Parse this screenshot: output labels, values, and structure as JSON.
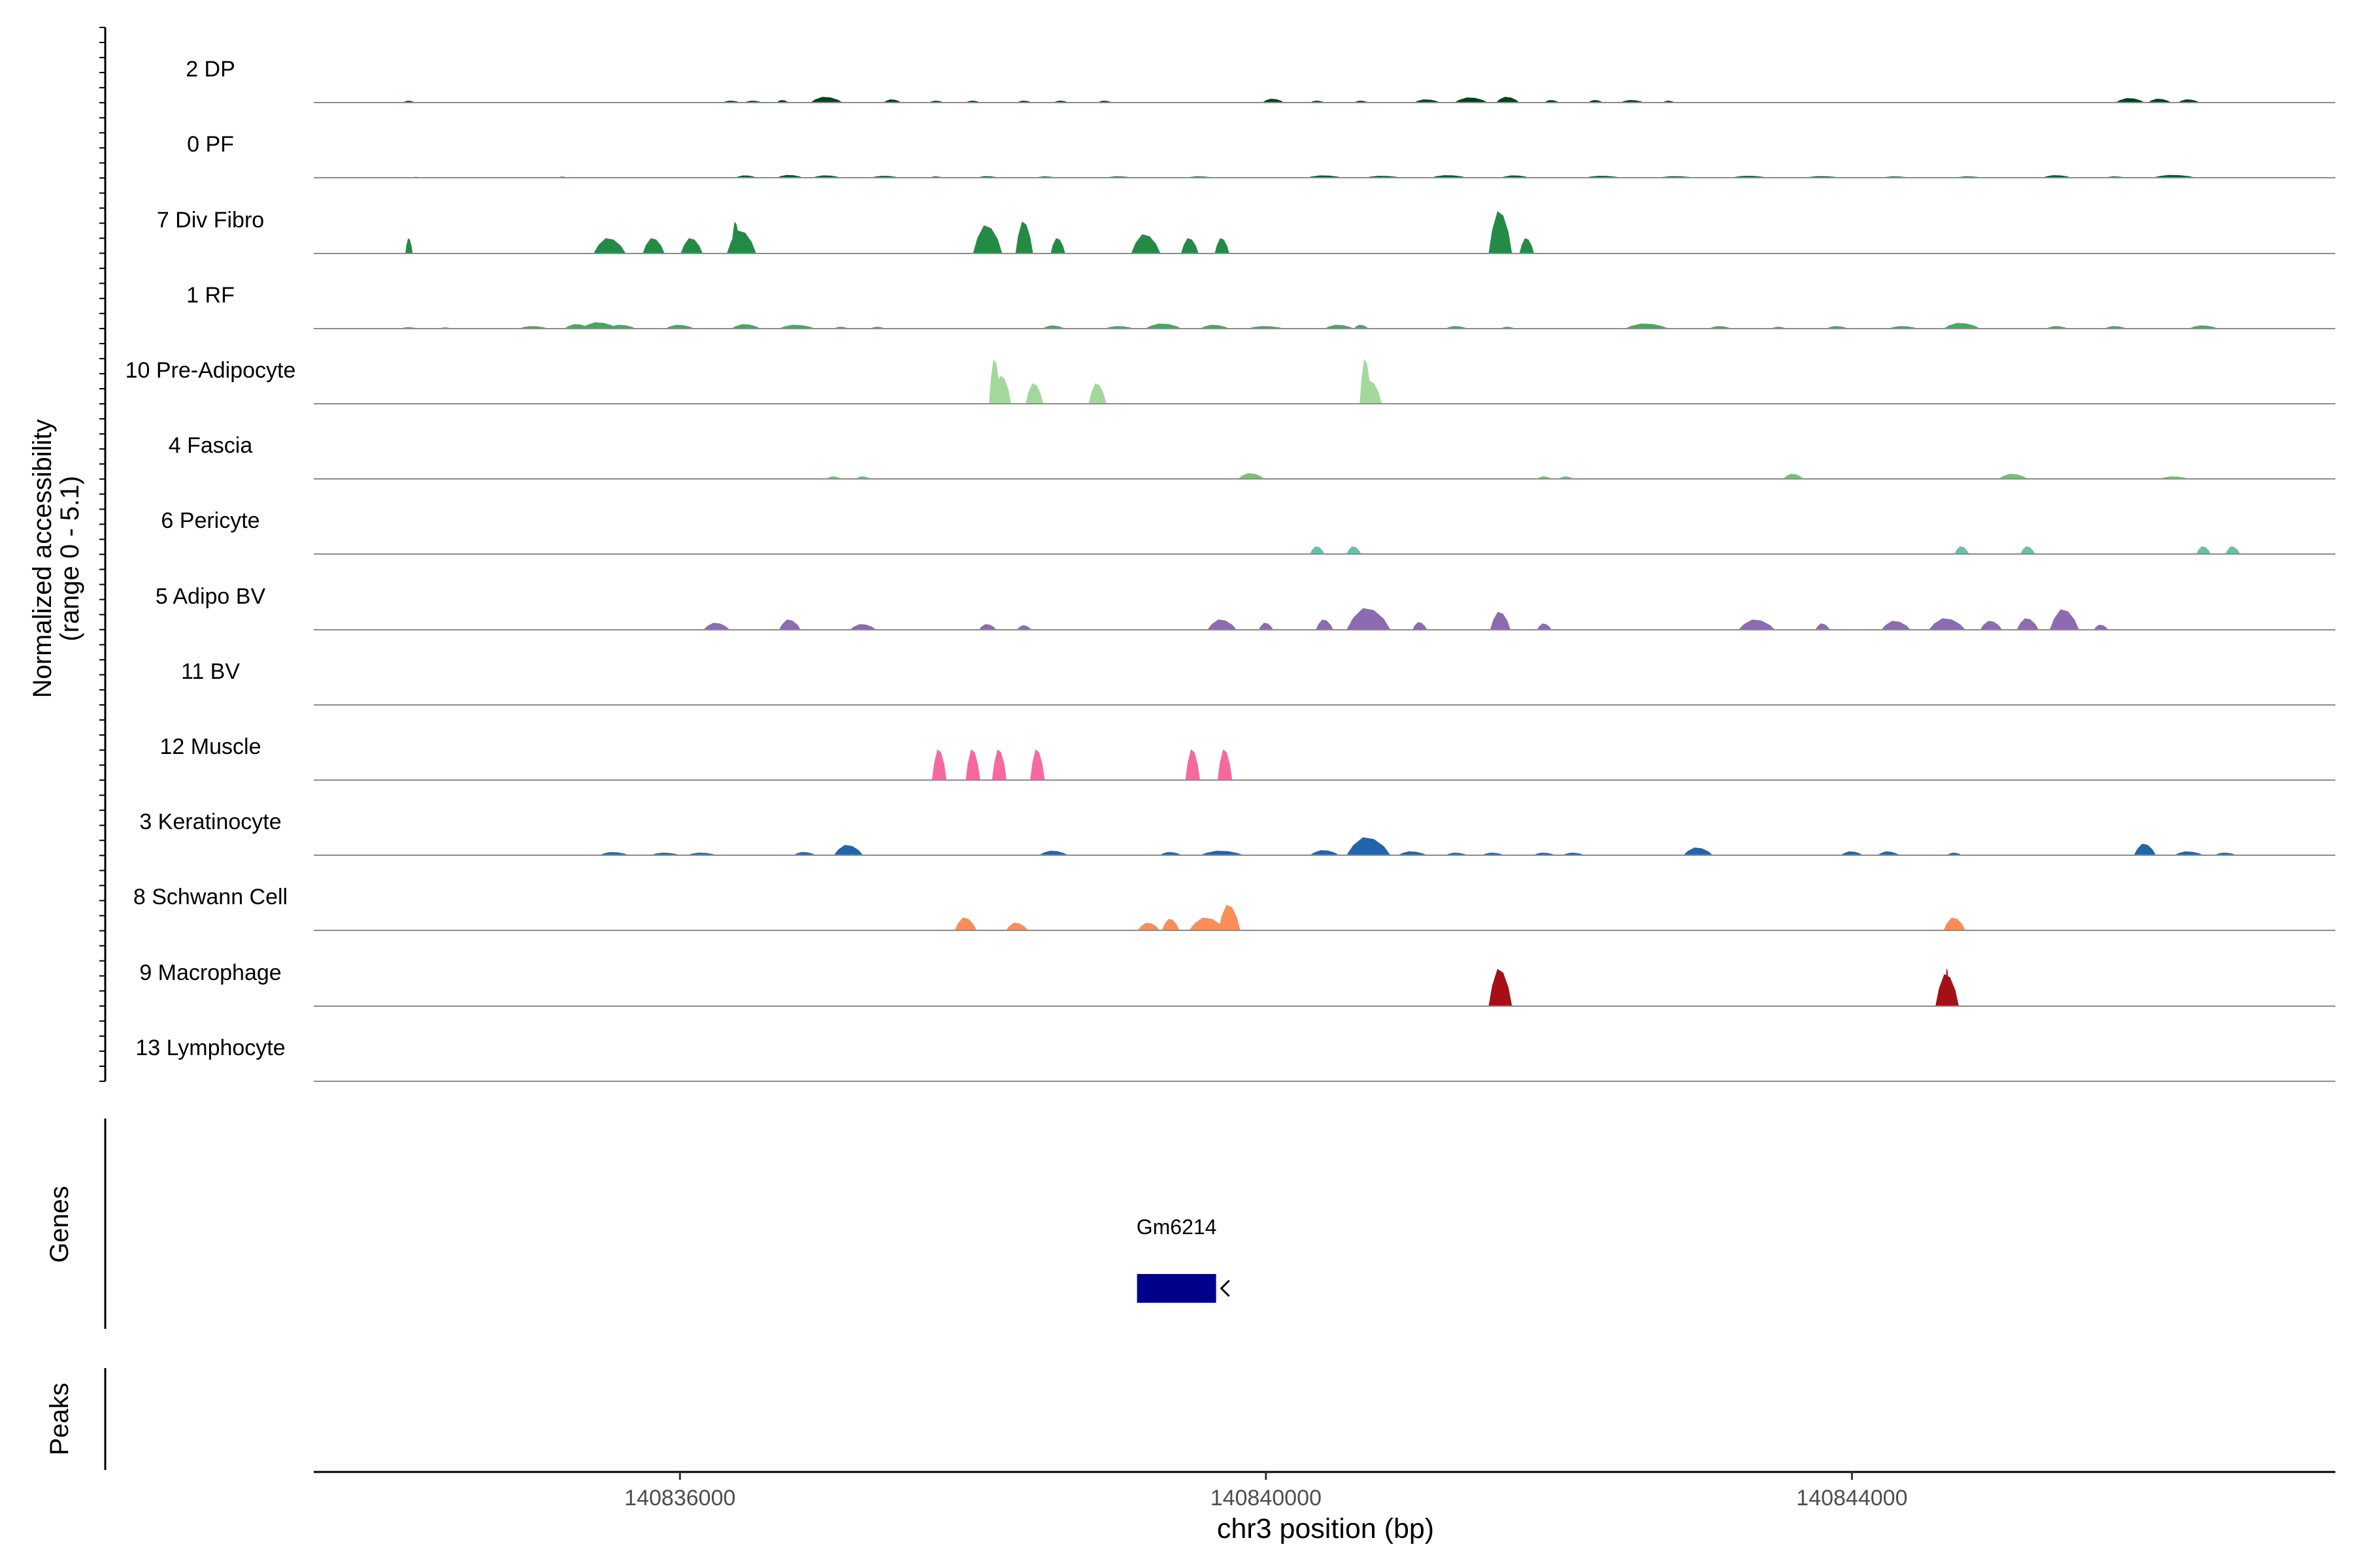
{
  "chart_data": {
    "type": "area",
    "chromosome": "chr3",
    "xlabel": "chr3 position (bp)",
    "ylabel": "Normalized accessibility",
    "ylabel_range": "(range 0 - 5.1)",
    "xlim": [
      140833500,
      140847300
    ],
    "ylim": [
      0,
      5.1
    ],
    "x_ticks": [
      140836000,
      140840000,
      140844000
    ],
    "x_tick_labels": [
      "140836000",
      "140840000",
      "140844000"
    ],
    "panel_labels": {
      "genes": "Genes",
      "peaks": "Peaks"
    },
    "tracks": [
      {
        "name": "2 DP",
        "color": "#00441b",
        "peaks": [
          [
            140834150,
            0.15,
            80
          ],
          [
            140836350,
            0.15,
            120
          ],
          [
            140836500,
            0.15,
            120
          ],
          [
            140836700,
            0.2,
            80
          ],
          [
            140837000,
            0.45,
            220
          ],
          [
            140837450,
            0.25,
            120
          ],
          [
            140837750,
            0.15,
            100
          ],
          [
            140838000,
            0.15,
            100
          ],
          [
            140838350,
            0.15,
            100
          ],
          [
            140838600,
            0.15,
            100
          ],
          [
            140838900,
            0.15,
            100
          ],
          [
            140840050,
            0.3,
            150
          ],
          [
            140840350,
            0.15,
            100
          ],
          [
            140840650,
            0.15,
            100
          ],
          [
            140841100,
            0.25,
            180
          ],
          [
            140841400,
            0.4,
            230
          ],
          [
            140841650,
            0.45,
            160
          ],
          [
            140841950,
            0.2,
            100
          ],
          [
            140842250,
            0.2,
            100
          ],
          [
            140842500,
            0.2,
            160
          ],
          [
            140842750,
            0.15,
            80
          ],
          [
            140845900,
            0.35,
            200
          ],
          [
            140846100,
            0.3,
            160
          ],
          [
            140846300,
            0.25,
            150
          ]
        ]
      },
      {
        "name": "0 PF",
        "color": "#005a32",
        "peaks": [
          [
            140834200,
            0.06,
            80
          ],
          [
            140835200,
            0.08,
            80
          ],
          [
            140836450,
            0.18,
            150
          ],
          [
            140836750,
            0.22,
            180
          ],
          [
            140837000,
            0.18,
            200
          ],
          [
            140837400,
            0.15,
            200
          ],
          [
            140837750,
            0.1,
            100
          ],
          [
            140838100,
            0.12,
            150
          ],
          [
            140838500,
            0.1,
            150
          ],
          [
            140839000,
            0.1,
            200
          ],
          [
            140839550,
            0.1,
            200
          ],
          [
            140840400,
            0.18,
            250
          ],
          [
            140840800,
            0.15,
            250
          ],
          [
            140841250,
            0.2,
            250
          ],
          [
            140841700,
            0.18,
            200
          ],
          [
            140842300,
            0.15,
            250
          ],
          [
            140842800,
            0.12,
            250
          ],
          [
            140843300,
            0.15,
            250
          ],
          [
            140843800,
            0.12,
            250
          ],
          [
            140844300,
            0.1,
            200
          ],
          [
            140844800,
            0.1,
            200
          ],
          [
            140845400,
            0.2,
            200
          ],
          [
            140845800,
            0.1,
            150
          ],
          [
            140846200,
            0.22,
            300
          ]
        ]
      },
      {
        "name": "7 Div Fibro",
        "color": "#238b45",
        "peaks": [
          [
            140834150,
            1.2,
            50
          ],
          [
            140835520,
            1.2,
            220
          ],
          [
            140835820,
            1.2,
            150
          ],
          [
            140836080,
            1.2,
            150
          ],
          [
            140836380,
            2.5,
            60
          ],
          [
            140836420,
            1.8,
            200
          ],
          [
            140838100,
            2.2,
            200
          ],
          [
            140838350,
            2.5,
            120
          ],
          [
            140838580,
            1.2,
            100
          ],
          [
            140839180,
            1.5,
            200
          ],
          [
            140839480,
            1.2,
            120
          ],
          [
            140839700,
            1.2,
            100
          ],
          [
            140841600,
            3.3,
            160
          ],
          [
            140841780,
            1.2,
            100
          ]
        ]
      },
      {
        "name": "1 RF",
        "color": "#41ab5d",
        "peaks": [
          [
            140834150,
            0.12,
            120
          ],
          [
            140834400,
            0.1,
            80
          ],
          [
            140835000,
            0.2,
            200
          ],
          [
            140835300,
            0.35,
            180
          ],
          [
            140835450,
            0.5,
            250
          ],
          [
            140835600,
            0.3,
            200
          ],
          [
            140836000,
            0.3,
            200
          ],
          [
            140836450,
            0.35,
            200
          ],
          [
            140836800,
            0.3,
            250
          ],
          [
            140837100,
            0.15,
            100
          ],
          [
            140837350,
            0.15,
            100
          ],
          [
            140838550,
            0.25,
            150
          ],
          [
            140839000,
            0.2,
            200
          ],
          [
            140839300,
            0.4,
            250
          ],
          [
            140839650,
            0.3,
            200
          ],
          [
            140840000,
            0.2,
            250
          ],
          [
            140840500,
            0.3,
            200
          ],
          [
            140840650,
            0.3,
            100
          ],
          [
            140841300,
            0.2,
            150
          ],
          [
            140841650,
            0.15,
            100
          ],
          [
            140842600,
            0.4,
            300
          ],
          [
            140843100,
            0.2,
            150
          ],
          [
            140843500,
            0.15,
            100
          ],
          [
            140843900,
            0.2,
            150
          ],
          [
            140844350,
            0.2,
            200
          ],
          [
            140844750,
            0.45,
            250
          ],
          [
            140845400,
            0.2,
            150
          ],
          [
            140845800,
            0.2,
            150
          ],
          [
            140846400,
            0.25,
            200
          ]
        ]
      },
      {
        "name": "10 Pre-Adipocyte",
        "color": "#a1d99b",
        "peaks": [
          [
            140838150,
            3.5,
            80
          ],
          [
            140838200,
            2.2,
            120
          ],
          [
            140838420,
            1.6,
            120
          ],
          [
            140838850,
            1.6,
            120
          ],
          [
            140840680,
            3.5,
            80
          ],
          [
            140840720,
            1.8,
            140
          ]
        ]
      },
      {
        "name": "4 Fascia",
        "color": "#74c476",
        "peaks": [
          [
            140837050,
            0.2,
            100
          ],
          [
            140837250,
            0.2,
            100
          ],
          [
            140839900,
            0.45,
            180
          ],
          [
            140841900,
            0.2,
            100
          ],
          [
            140842050,
            0.2,
            100
          ],
          [
            140843600,
            0.4,
            140
          ],
          [
            140845100,
            0.4,
            200
          ],
          [
            140846200,
            0.2,
            200
          ]
        ]
      },
      {
        "name": "6 Pericyte",
        "color": "#66c2a4",
        "peaks": [
          [
            140840350,
            0.6,
            100
          ],
          [
            140840600,
            0.6,
            100
          ],
          [
            140844750,
            0.6,
            100
          ],
          [
            140845200,
            0.6,
            100
          ],
          [
            140846400,
            0.6,
            100
          ],
          [
            140846600,
            0.6,
            100
          ]
        ]
      },
      {
        "name": "5 Adipo BV",
        "color": "#8c6bb1",
        "peaks": [
          [
            140836250,
            0.55,
            180
          ],
          [
            140836750,
            0.8,
            150
          ],
          [
            140837250,
            0.45,
            180
          ],
          [
            140838100,
            0.45,
            120
          ],
          [
            140838350,
            0.35,
            100
          ],
          [
            140839700,
            0.8,
            200
          ],
          [
            140840000,
            0.55,
            100
          ],
          [
            140840400,
            0.8,
            120
          ],
          [
            140840700,
            1.7,
            300
          ],
          [
            140841050,
            0.6,
            100
          ],
          [
            140841600,
            1.4,
            140
          ],
          [
            140841900,
            0.5,
            100
          ],
          [
            140843350,
            0.8,
            250
          ],
          [
            140843800,
            0.5,
            100
          ],
          [
            140844300,
            0.7,
            200
          ],
          [
            140844650,
            0.9,
            250
          ],
          [
            140844950,
            0.7,
            150
          ],
          [
            140845200,
            0.9,
            150
          ],
          [
            140845450,
            1.6,
            200
          ],
          [
            140845700,
            0.4,
            100
          ]
        ]
      },
      {
        "name": "11 BV",
        "color": "#807dba",
        "peaks": []
      },
      {
        "name": "12 Muscle",
        "color": "#f768a1",
        "peaks": [
          [
            140837770,
            2.4,
            100
          ],
          [
            140838000,
            2.4,
            100
          ],
          [
            140838180,
            2.4,
            100
          ],
          [
            140838440,
            2.4,
            100
          ],
          [
            140839500,
            2.4,
            100
          ],
          [
            140839720,
            2.4,
            100
          ]
        ]
      },
      {
        "name": "3 Keratinocyte",
        "color": "#2166ac",
        "peaks": [
          [
            140835550,
            0.25,
            200
          ],
          [
            140835900,
            0.2,
            200
          ],
          [
            140836150,
            0.2,
            200
          ],
          [
            140836850,
            0.25,
            150
          ],
          [
            140837150,
            0.8,
            200
          ],
          [
            140838550,
            0.35,
            200
          ],
          [
            140839350,
            0.25,
            150
          ],
          [
            140839700,
            0.35,
            300
          ],
          [
            140840400,
            0.4,
            200
          ],
          [
            140840700,
            1.4,
            300
          ],
          [
            140841000,
            0.3,
            200
          ],
          [
            140841300,
            0.2,
            150
          ],
          [
            140841550,
            0.2,
            150
          ],
          [
            140841900,
            0.2,
            150
          ],
          [
            140842100,
            0.2,
            150
          ],
          [
            140842950,
            0.6,
            200
          ],
          [
            140844000,
            0.3,
            150
          ],
          [
            140844250,
            0.3,
            150
          ],
          [
            140844700,
            0.2,
            100
          ],
          [
            140846000,
            0.9,
            150
          ],
          [
            140846300,
            0.3,
            200
          ],
          [
            140846550,
            0.2,
            150
          ]
        ]
      },
      {
        "name": "8 Schwann Cell",
        "color": "#fc8d59",
        "peaks": [
          [
            140837950,
            1.0,
            150
          ],
          [
            140838300,
            0.6,
            150
          ],
          [
            140839200,
            0.6,
            150
          ],
          [
            140839350,
            0.9,
            120
          ],
          [
            140839600,
            1.0,
            250
          ],
          [
            140839750,
            2.0,
            150
          ],
          [
            140844700,
            1.0,
            150
          ]
        ]
      },
      {
        "name": "9 Macrophage",
        "color": "#a50f15",
        "peaks": [
          [
            140841600,
            2.9,
            160
          ],
          [
            140844650,
            2.5,
            160
          ],
          [
            140844650,
            3.0,
            30
          ]
        ]
      },
      {
        "name": "13 Lymphocyte",
        "color": "#fb6a4a",
        "peaks": []
      }
    ],
    "genes": [
      {
        "name": "Gm6214",
        "start": 140839120,
        "end": 140839660,
        "strand": "-",
        "color": "#00008b"
      }
    ],
    "peaks_track": []
  }
}
